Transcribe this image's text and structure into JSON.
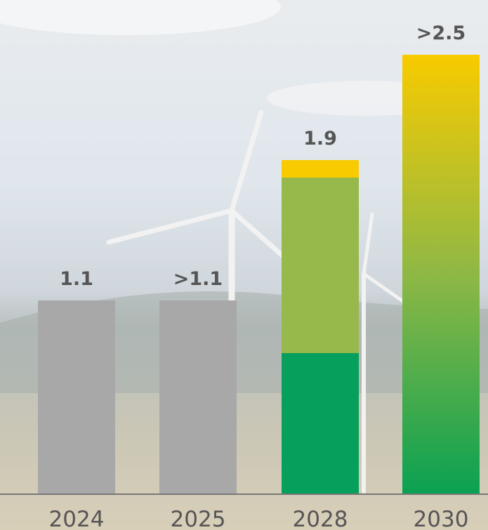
{
  "chart_data": {
    "type": "stacked_bar",
    "categories": [
      "2024",
      "2025",
      "2028",
      "2030"
    ],
    "series": [
      {
        "color": "#a8a8a8",
        "values": [
          1.1,
          1.1,
          null,
          null
        ]
      },
      {
        "color": "#06a05c",
        "values": [
          null,
          null,
          0.8,
          null
        ]
      },
      {
        "color": "#97b84a",
        "values": [
          null,
          null,
          1.0,
          null
        ]
      },
      {
        "color": "#f8cb00",
        "values": [
          null,
          null,
          0.1,
          null
        ]
      },
      {
        "gradient": [
          "#f8cb00",
          "#8fb845",
          "#0aa152"
        ],
        "values": [
          null,
          null,
          null,
          2.5
        ]
      }
    ],
    "totals": [
      1.1,
      1.1,
      1.9,
      2.5
    ],
    "total_labels": [
      "1.1",
      ">1.1",
      "1.9",
      ">2.5"
    ],
    "ylim": [
      0,
      2.6
    ]
  }
}
